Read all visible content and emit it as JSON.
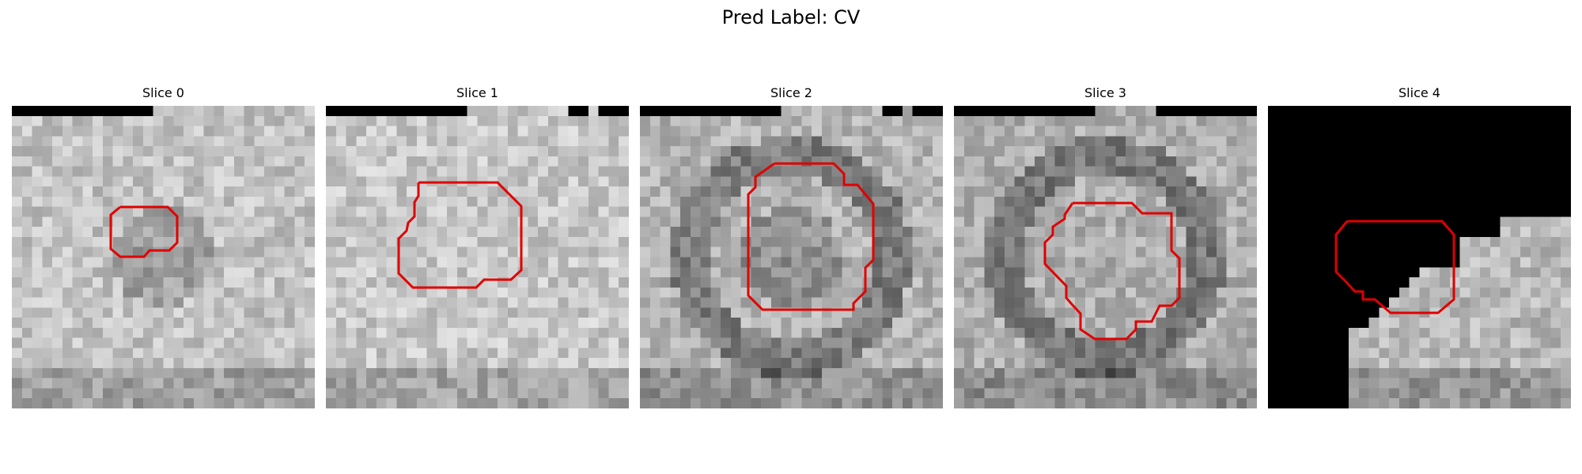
{
  "figure": {
    "title": "Pred Label: CV"
  },
  "panels": [
    {
      "title": "Slice 0",
      "seed": 11,
      "base": 195,
      "masked": "top-strip",
      "dark_ring": false,
      "inner_dark": true,
      "contour_color": "#e00000"
    },
    {
      "title": "Slice 1",
      "seed": 23,
      "base": 200,
      "masked": "top-strip-gaps",
      "dark_ring": false,
      "inner_dark": false,
      "contour_color": "#e00000"
    },
    {
      "title": "Slice 2",
      "seed": 37,
      "base": 180,
      "masked": "top-strip-gaps",
      "dark_ring": true,
      "inner_dark": true,
      "contour_color": "#e00000"
    },
    {
      "title": "Slice 3",
      "seed": 53,
      "base": 175,
      "masked": "top-strip-partial",
      "dark_ring": true,
      "inner_dark": false,
      "contour_color": "#e00000"
    },
    {
      "title": "Slice 4",
      "seed": 71,
      "base": 185,
      "masked": "staircase",
      "dark_ring": false,
      "inner_dark": false,
      "contour_color": "#e00000"
    }
  ]
}
